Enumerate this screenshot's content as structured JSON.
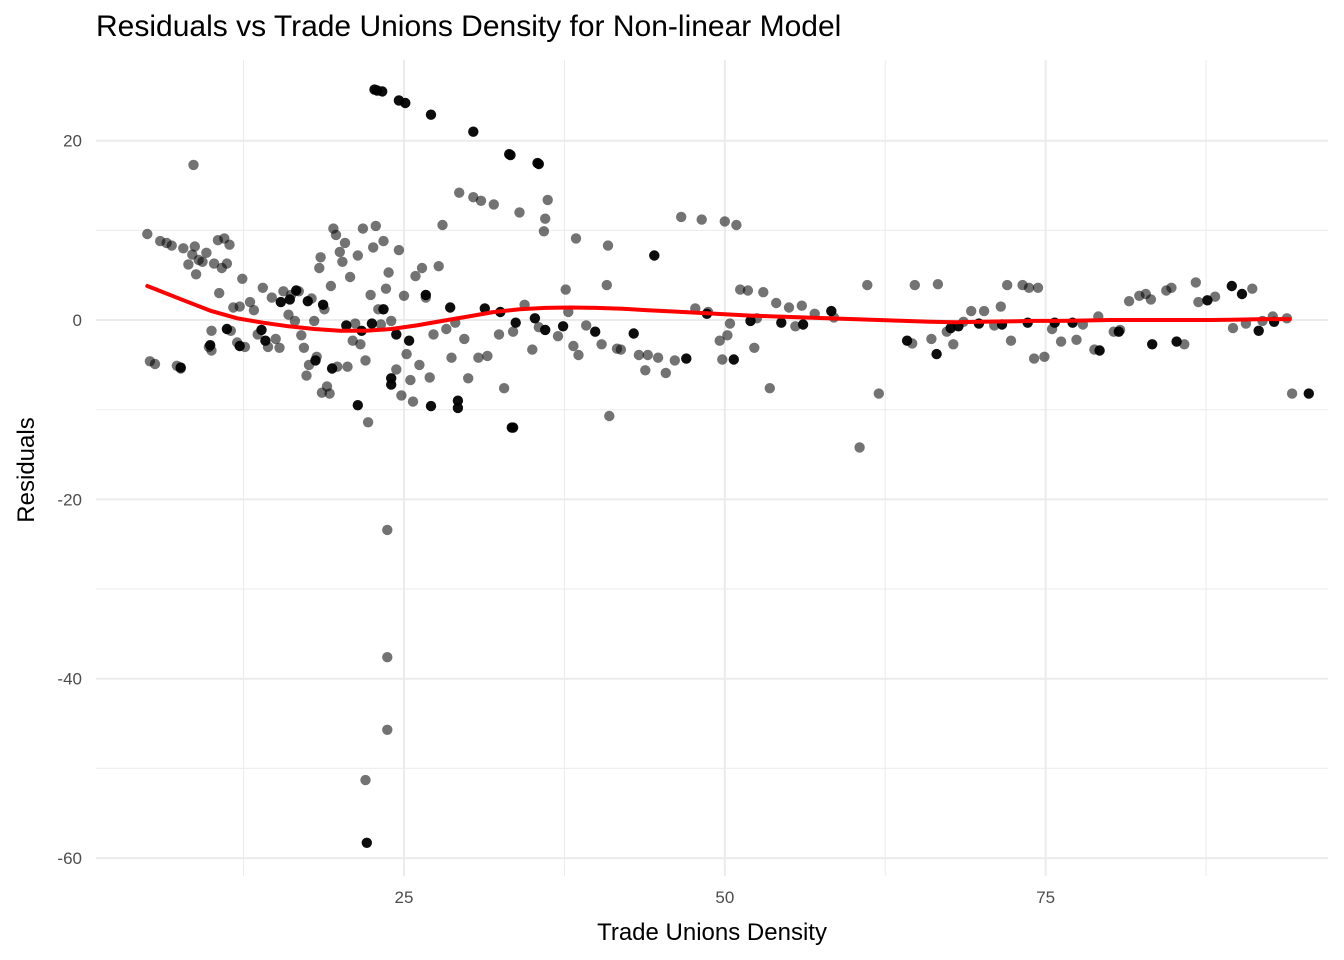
{
  "chart_data": {
    "type": "scatter",
    "title": "Residuals vs Trade Unions Density for Non-linear Model",
    "xlabel": "Trade Unions Density",
    "ylabel": "Residuals",
    "xlim": [
      1,
      97
    ],
    "ylim": [
      -62,
      29
    ],
    "x_ticks": [
      25,
      50,
      75
    ],
    "x_tick_labels": [
      "25",
      "50",
      "75"
    ],
    "y_ticks": [
      -60,
      -40,
      -20,
      0,
      20
    ],
    "y_tick_labels": [
      "-60",
      "-40",
      "-20",
      "0",
      "20"
    ],
    "grid": true,
    "legend": "none",
    "colors": {
      "points": "#000000",
      "smooth": "#ff0000",
      "grid": "#ebebeb"
    },
    "series": [
      {
        "type": "scatter",
        "alpha": 0.55,
        "points": [
          [
            5.0,
            9.6
          ],
          [
            5.2,
            -4.6
          ],
          [
            5.6,
            -4.9
          ],
          [
            6.0,
            8.8
          ],
          [
            6.5,
            8.6
          ],
          [
            6.9,
            8.3
          ],
          [
            7.3,
            -5.1
          ],
          [
            7.6,
            -5.4
          ],
          [
            7.8,
            8.0
          ],
          [
            8.2,
            6.2
          ],
          [
            8.5,
            7.3
          ],
          [
            8.6,
            17.3
          ],
          [
            8.7,
            8.2
          ],
          [
            8.8,
            5.1
          ],
          [
            9.0,
            6.7
          ],
          [
            9.3,
            6.5
          ],
          [
            9.6,
            7.5
          ],
          [
            9.8,
            -3.0
          ],
          [
            10.0,
            -3.4
          ],
          [
            10.0,
            -1.2
          ],
          [
            10.2,
            6.3
          ],
          [
            10.5,
            8.9
          ],
          [
            10.6,
            3.0
          ],
          [
            10.8,
            5.8
          ],
          [
            11.0,
            9.1
          ],
          [
            11.2,
            6.3
          ],
          [
            11.4,
            8.4
          ],
          [
            11.5,
            -1.2
          ],
          [
            11.7,
            1.4
          ],
          [
            12.0,
            -2.5
          ],
          [
            12.2,
            1.5
          ],
          [
            12.4,
            4.6
          ],
          [
            12.6,
            -3.0
          ],
          [
            13.0,
            2.0
          ],
          [
            13.3,
            1.1
          ],
          [
            13.6,
            -1.6
          ],
          [
            14.0,
            3.6
          ],
          [
            14.4,
            -3.0
          ],
          [
            14.7,
            2.5
          ],
          [
            15.0,
            -2.1
          ],
          [
            15.3,
            -3.1
          ],
          [
            15.6,
            3.2
          ],
          [
            16.0,
            0.6
          ],
          [
            16.2,
            2.8
          ],
          [
            16.5,
            -0.1
          ],
          [
            16.8,
            3.2
          ],
          [
            17.0,
            -1.7
          ],
          [
            17.2,
            -3.1
          ],
          [
            17.4,
            -6.2
          ],
          [
            17.6,
            -5.0
          ],
          [
            17.8,
            2.4
          ],
          [
            18.0,
            -0.1
          ],
          [
            18.2,
            -4.1
          ],
          [
            18.4,
            5.8
          ],
          [
            18.5,
            7.0
          ],
          [
            18.6,
            -8.1
          ],
          [
            18.8,
            1.2
          ],
          [
            19.0,
            -7.4
          ],
          [
            19.2,
            -8.2
          ],
          [
            19.3,
            3.8
          ],
          [
            19.5,
            10.2
          ],
          [
            19.7,
            9.5
          ],
          [
            19.8,
            -5.2
          ],
          [
            20.0,
            7.6
          ],
          [
            20.2,
            6.5
          ],
          [
            20.4,
            8.6
          ],
          [
            20.6,
            -5.2
          ],
          [
            20.8,
            4.8
          ],
          [
            21.0,
            -2.3
          ],
          [
            21.2,
            -0.4
          ],
          [
            21.4,
            7.2
          ],
          [
            21.6,
            -2.7
          ],
          [
            21.8,
            10.2
          ],
          [
            22.0,
            -4.5
          ],
          [
            22.2,
            -11.4
          ],
          [
            22.4,
            2.8
          ],
          [
            22.6,
            8.1
          ],
          [
            22.8,
            10.5
          ],
          [
            23.0,
            1.2
          ],
          [
            23.2,
            -0.5
          ],
          [
            23.4,
            8.8
          ],
          [
            23.6,
            3.5
          ],
          [
            23.8,
            5.3
          ],
          [
            24.0,
            -0.1
          ],
          [
            23.7,
            -23.4
          ],
          [
            23.7,
            -37.6
          ],
          [
            23.7,
            -45.7
          ],
          [
            22.0,
            -51.3
          ],
          [
            24.4,
            -5.5
          ],
          [
            24.6,
            7.8
          ],
          [
            24.8,
            -8.4
          ],
          [
            25.0,
            2.7
          ],
          [
            25.2,
            -3.8
          ],
          [
            25.5,
            -6.7
          ],
          [
            25.7,
            -9.1
          ],
          [
            25.9,
            4.9
          ],
          [
            26.2,
            -5.0
          ],
          [
            26.4,
            5.8
          ],
          [
            26.7,
            2.5
          ],
          [
            27.0,
            -6.4
          ],
          [
            27.3,
            -1.6
          ],
          [
            27.7,
            6.0
          ],
          [
            28.0,
            10.6
          ],
          [
            28.3,
            -1.0
          ],
          [
            28.7,
            -4.2
          ],
          [
            29.0,
            -0.3
          ],
          [
            29.3,
            14.2
          ],
          [
            29.7,
            -2.1
          ],
          [
            30.0,
            -6.5
          ],
          [
            30.4,
            13.7
          ],
          [
            30.8,
            -4.2
          ],
          [
            31.0,
            13.3
          ],
          [
            31.5,
            -4.0
          ],
          [
            32.0,
            12.9
          ],
          [
            32.4,
            -1.6
          ],
          [
            32.8,
            -7.6
          ],
          [
            33.5,
            -1.3
          ],
          [
            34.0,
            12.0
          ],
          [
            34.4,
            1.7
          ],
          [
            35.0,
            -3.3
          ],
          [
            35.5,
            -0.8
          ],
          [
            35.9,
            9.9
          ],
          [
            36.0,
            11.3
          ],
          [
            36.2,
            13.4
          ],
          [
            37.0,
            -1.8
          ],
          [
            37.6,
            3.4
          ],
          [
            37.8,
            0.9
          ],
          [
            38.2,
            -2.9
          ],
          [
            38.4,
            9.1
          ],
          [
            38.6,
            -3.9
          ],
          [
            39.2,
            -0.6
          ],
          [
            40.4,
            -2.7
          ],
          [
            40.8,
            3.9
          ],
          [
            40.9,
            8.3
          ],
          [
            41.0,
            -10.7
          ],
          [
            41.6,
            -3.2
          ],
          [
            41.9,
            -3.3
          ],
          [
            43.3,
            -3.9
          ],
          [
            43.8,
            -5.6
          ],
          [
            44.0,
            -3.9
          ],
          [
            44.8,
            -4.2
          ],
          [
            45.4,
            -5.9
          ],
          [
            46.1,
            -4.5
          ],
          [
            46.6,
            11.5
          ],
          [
            47.7,
            1.3
          ],
          [
            48.2,
            11.2
          ],
          [
            48.7,
            0.9
          ],
          [
            49.6,
            -2.3
          ],
          [
            49.8,
            -4.4
          ],
          [
            50.0,
            11.0
          ],
          [
            50.2,
            -1.7
          ],
          [
            50.4,
            -0.4
          ],
          [
            50.9,
            10.6
          ],
          [
            51.2,
            3.4
          ],
          [
            51.8,
            3.3
          ],
          [
            52.3,
            -3.1
          ],
          [
            52.5,
            0.2
          ],
          [
            53.0,
            3.1
          ],
          [
            53.5,
            -7.6
          ],
          [
            54.0,
            1.9
          ],
          [
            55.0,
            1.4
          ],
          [
            55.5,
            -0.7
          ],
          [
            56.0,
            1.6
          ],
          [
            57.0,
            0.7
          ],
          [
            58.5,
            0.3
          ],
          [
            60.5,
            -14.2
          ],
          [
            61.1,
            3.9
          ],
          [
            62.0,
            -8.2
          ],
          [
            64.6,
            -2.6
          ],
          [
            64.8,
            3.9
          ],
          [
            66.1,
            -2.1
          ],
          [
            66.6,
            4.0
          ],
          [
            67.3,
            -1.3
          ],
          [
            67.8,
            -2.7
          ],
          [
            68.6,
            -0.2
          ],
          [
            69.2,
            1.0
          ],
          [
            70.2,
            1.0
          ],
          [
            71.0,
            -0.6
          ],
          [
            71.5,
            1.5
          ],
          [
            72.0,
            3.9
          ],
          [
            72.3,
            -2.3
          ],
          [
            73.2,
            3.9
          ],
          [
            73.7,
            3.6
          ],
          [
            74.1,
            -4.3
          ],
          [
            74.4,
            3.6
          ],
          [
            74.9,
            -4.1
          ],
          [
            75.5,
            -1.0
          ],
          [
            76.2,
            -2.4
          ],
          [
            77.4,
            -2.2
          ],
          [
            77.9,
            -0.5
          ],
          [
            78.8,
            -3.3
          ],
          [
            79.1,
            0.4
          ],
          [
            80.3,
            -1.3
          ],
          [
            80.8,
            -1.1
          ],
          [
            81.5,
            2.1
          ],
          [
            82.3,
            2.7
          ],
          [
            82.8,
            2.9
          ],
          [
            83.2,
            2.3
          ],
          [
            84.4,
            3.3
          ],
          [
            84.8,
            3.6
          ],
          [
            85.8,
            -2.7
          ],
          [
            86.7,
            4.2
          ],
          [
            86.9,
            2.0
          ],
          [
            88.2,
            2.6
          ],
          [
            89.6,
            -0.9
          ],
          [
            90.6,
            -0.4
          ],
          [
            91.1,
            3.5
          ],
          [
            91.9,
            -0.1
          ],
          [
            92.7,
            0.4
          ],
          [
            93.8,
            0.2
          ],
          [
            94.2,
            -8.2
          ]
        ]
      },
      {
        "type": "scatter",
        "alpha": 0.95,
        "points": [
          [
            22.7,
            25.7
          ],
          [
            22.9,
            25.6
          ],
          [
            23.3,
            25.5
          ],
          [
            24.6,
            24.5
          ],
          [
            25.1,
            24.2
          ],
          [
            27.1,
            22.9
          ],
          [
            30.4,
            21.0
          ],
          [
            33.2,
            18.5
          ],
          [
            33.3,
            18.4
          ],
          [
            35.4,
            17.5
          ],
          [
            35.5,
            17.4
          ],
          [
            24.0,
            -6.5
          ],
          [
            24.0,
            -7.2
          ],
          [
            27.1,
            -9.6
          ],
          [
            29.2,
            -9.0
          ],
          [
            29.2,
            -9.8
          ],
          [
            33.4,
            -12.0
          ],
          [
            33.5,
            -12.0
          ],
          [
            22.1,
            -58.3
          ],
          [
            21.4,
            -9.5
          ],
          [
            7.6,
            -5.3
          ],
          [
            9.9,
            -2.8
          ],
          [
            11.2,
            -1.0
          ],
          [
            12.2,
            -2.9
          ],
          [
            13.9,
            -1.1
          ],
          [
            14.2,
            -2.3
          ],
          [
            15.4,
            2.0
          ],
          [
            16.1,
            2.3
          ],
          [
            16.6,
            3.3
          ],
          [
            17.5,
            2.1
          ],
          [
            18.1,
            -4.5
          ],
          [
            18.7,
            1.7
          ],
          [
            19.4,
            -5.4
          ],
          [
            20.5,
            -0.6
          ],
          [
            21.7,
            -1.2
          ],
          [
            22.5,
            -0.4
          ],
          [
            23.4,
            1.2
          ],
          [
            24.4,
            -1.6
          ],
          [
            25.4,
            -2.3
          ],
          [
            26.7,
            2.8
          ],
          [
            28.6,
            1.4
          ],
          [
            31.3,
            1.3
          ],
          [
            32.5,
            0.9
          ],
          [
            33.7,
            -0.3
          ],
          [
            35.2,
            0.2
          ],
          [
            36.0,
            -1.1
          ],
          [
            37.4,
            -0.7
          ],
          [
            39.9,
            -1.3
          ],
          [
            42.9,
            -1.5
          ],
          [
            44.5,
            7.2
          ],
          [
            47.0,
            -4.3
          ],
          [
            48.6,
            0.7
          ],
          [
            50.7,
            -4.4
          ],
          [
            52.0,
            -0.1
          ],
          [
            54.4,
            -0.3
          ],
          [
            56.1,
            -0.5
          ],
          [
            58.3,
            1.0
          ],
          [
            64.2,
            -2.3
          ],
          [
            66.5,
            -3.8
          ],
          [
            67.6,
            -0.9
          ],
          [
            68.2,
            -0.7
          ],
          [
            69.8,
            -0.4
          ],
          [
            71.6,
            -0.5
          ],
          [
            73.6,
            -0.3
          ],
          [
            75.7,
            -0.3
          ],
          [
            77.1,
            -0.3
          ],
          [
            79.2,
            -3.4
          ],
          [
            80.7,
            -1.3
          ],
          [
            83.3,
            -2.7
          ],
          [
            85.2,
            -2.4
          ],
          [
            87.6,
            2.2
          ],
          [
            89.5,
            3.8
          ],
          [
            90.3,
            2.9
          ],
          [
            91.6,
            -1.2
          ],
          [
            92.8,
            -0.2
          ],
          [
            95.5,
            -8.2
          ]
        ]
      }
    ],
    "smooth": {
      "type": "line",
      "x": [
        5,
        8,
        10,
        12,
        14,
        16,
        18,
        20,
        22,
        24,
        26,
        28,
        30,
        32,
        34,
        36,
        38,
        40,
        42,
        44,
        46,
        48,
        50,
        52,
        54,
        56,
        58,
        60,
        62,
        64,
        66,
        68,
        70,
        72,
        74,
        76,
        78,
        80,
        82,
        84,
        86,
        88,
        90,
        92,
        94
      ],
      "y": [
        3.8,
        2.1,
        1.0,
        0.2,
        -0.3,
        -0.7,
        -1.0,
        -1.2,
        -1.2,
        -1.0,
        -0.6,
        -0.1,
        0.4,
        0.9,
        1.2,
        1.35,
        1.4,
        1.35,
        1.25,
        1.1,
        0.95,
        0.8,
        0.65,
        0.5,
        0.4,
        0.3,
        0.2,
        0.1,
        0.0,
        -0.1,
        -0.2,
        -0.25,
        -0.2,
        -0.15,
        -0.1,
        -0.1,
        -0.05,
        0.0,
        0.0,
        0.0,
        0.0,
        0.0,
        0.05,
        0.1,
        0.1
      ]
    }
  }
}
